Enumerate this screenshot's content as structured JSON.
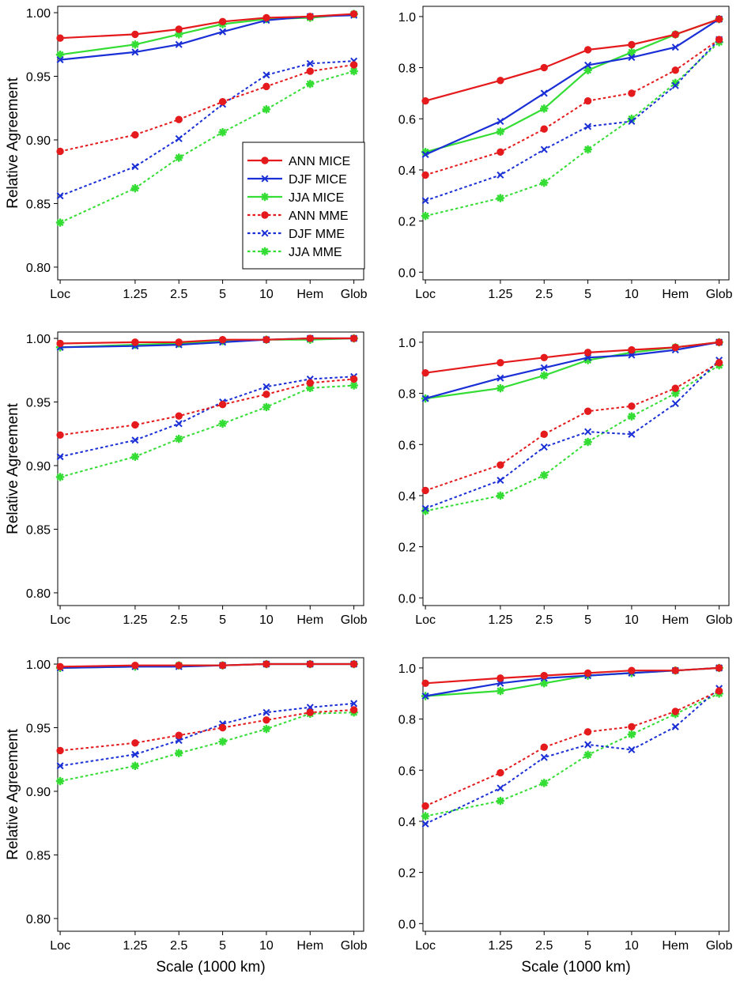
{
  "figure": {
    "ylabel": "Relative Agreement",
    "xlabel": "Scale (1000 km)",
    "x_tick_labels": [
      "Loc",
      "1.25",
      "2.5",
      "5",
      "10",
      "Hem",
      "Glob"
    ]
  },
  "legend": {
    "location": "center-right of top-left panel",
    "entries": [
      {
        "label": "ANN MICE",
        "series_key": "ann_mice"
      },
      {
        "label": "DJF MICE",
        "series_key": "djf_mice"
      },
      {
        "label": "JJA MICE",
        "series_key": "jja_mice"
      },
      {
        "label": "ANN MME",
        "series_key": "ann_mme"
      },
      {
        "label": "DJF MME",
        "series_key": "djf_mme"
      },
      {
        "label": "JJA MME",
        "series_key": "jja_mme"
      }
    ]
  },
  "series_styles": {
    "ann_mice": {
      "color": "#e41a1c",
      "dashed": false,
      "marker": "dot"
    },
    "djf_mice": {
      "color": "#1a2fd6",
      "dashed": false,
      "marker": "x"
    },
    "jja_mice": {
      "color": "#33dd33",
      "dashed": false,
      "marker": "star"
    },
    "ann_mme": {
      "color": "#e41a1c",
      "dashed": true,
      "marker": "dot"
    },
    "djf_mme": {
      "color": "#1a2fd6",
      "dashed": true,
      "marker": "x"
    },
    "jja_mme": {
      "color": "#33dd33",
      "dashed": true,
      "marker": "star"
    }
  },
  "chart_data": [
    {
      "type": "line",
      "panel": "row1-left",
      "categories": [
        "Loc",
        "1.25",
        "2.5",
        "5",
        "10",
        "Hem",
        "Glob"
      ],
      "ylabel": "Relative Agreement",
      "xlabel": "",
      "ylim": [
        0.79,
        1.005
      ],
      "yticks": [
        0.8,
        0.85,
        0.9,
        0.95,
        1.0
      ],
      "ytick_labels": [
        "0.80",
        "0.85",
        "0.90",
        "0.95",
        "1.00"
      ],
      "show_legend": true,
      "series": [
        {
          "key": "ann_mice",
          "name": "ANN MICE",
          "values": [
            0.98,
            0.983,
            0.987,
            0.993,
            0.996,
            0.997,
            0.999
          ]
        },
        {
          "key": "djf_mice",
          "name": "DJF MICE",
          "values": [
            0.963,
            0.969,
            0.975,
            0.985,
            0.994,
            0.997,
            0.998
          ]
        },
        {
          "key": "jja_mice",
          "name": "JJA MICE",
          "values": [
            0.967,
            0.975,
            0.983,
            0.991,
            0.995,
            0.996,
            0.999
          ]
        },
        {
          "key": "ann_mme",
          "name": "ANN MME",
          "values": [
            0.891,
            0.904,
            0.916,
            0.93,
            0.942,
            0.954,
            0.959
          ]
        },
        {
          "key": "djf_mme",
          "name": "DJF MME",
          "values": [
            0.856,
            0.879,
            0.901,
            0.928,
            0.951,
            0.96,
            0.962
          ]
        },
        {
          "key": "jja_mme",
          "name": "JJA MME",
          "values": [
            0.835,
            0.862,
            0.886,
            0.906,
            0.924,
            0.944,
            0.954
          ]
        }
      ]
    },
    {
      "type": "line",
      "panel": "row1-right",
      "categories": [
        "Loc",
        "1.25",
        "2.5",
        "5",
        "10",
        "Hem",
        "Glob"
      ],
      "ylabel": "",
      "xlabel": "",
      "ylim": [
        -0.03,
        1.04
      ],
      "yticks": [
        0.0,
        0.2,
        0.4,
        0.6,
        0.8,
        1.0
      ],
      "ytick_labels": [
        "0.0",
        "0.2",
        "0.4",
        "0.6",
        "0.8",
        "1.0"
      ],
      "show_legend": false,
      "series": [
        {
          "key": "ann_mice",
          "name": "ANN MICE",
          "values": [
            0.67,
            0.75,
            0.8,
            0.87,
            0.89,
            0.93,
            0.99
          ]
        },
        {
          "key": "djf_mice",
          "name": "DJF MICE",
          "values": [
            0.46,
            0.59,
            0.7,
            0.81,
            0.84,
            0.88,
            0.99
          ]
        },
        {
          "key": "jja_mice",
          "name": "JJA MICE",
          "values": [
            0.47,
            0.55,
            0.64,
            0.79,
            0.86,
            0.93,
            0.99
          ]
        },
        {
          "key": "ann_mme",
          "name": "ANN MME",
          "values": [
            0.38,
            0.47,
            0.56,
            0.67,
            0.7,
            0.79,
            0.91
          ]
        },
        {
          "key": "djf_mme",
          "name": "DJF MME",
          "values": [
            0.28,
            0.38,
            0.48,
            0.57,
            0.59,
            0.73,
            0.91
          ]
        },
        {
          "key": "jja_mme",
          "name": "JJA MME",
          "values": [
            0.22,
            0.29,
            0.35,
            0.48,
            0.6,
            0.74,
            0.9
          ]
        }
      ]
    },
    {
      "type": "line",
      "panel": "row2-left",
      "categories": [
        "Loc",
        "1.25",
        "2.5",
        "5",
        "10",
        "Hem",
        "Glob"
      ],
      "ylabel": "Relative Agreement",
      "xlabel": "",
      "ylim": [
        0.79,
        1.005
      ],
      "yticks": [
        0.8,
        0.85,
        0.9,
        0.95,
        1.0
      ],
      "ytick_labels": [
        "0.80",
        "0.85",
        "0.90",
        "0.95",
        "1.00"
      ],
      "show_legend": false,
      "series": [
        {
          "key": "ann_mice",
          "name": "ANN MICE",
          "values": [
            0.996,
            0.997,
            0.997,
            0.999,
            0.999,
            1.0,
            1.0
          ]
        },
        {
          "key": "djf_mice",
          "name": "DJF MICE",
          "values": [
            0.993,
            0.994,
            0.995,
            0.997,
            0.999,
            1.0,
            1.0
          ]
        },
        {
          "key": "jja_mice",
          "name": "JJA MICE",
          "values": [
            0.993,
            0.995,
            0.996,
            0.998,
            0.999,
            0.999,
            1.0
          ]
        },
        {
          "key": "ann_mme",
          "name": "ANN MME",
          "values": [
            0.924,
            0.932,
            0.939,
            0.948,
            0.956,
            0.965,
            0.968
          ]
        },
        {
          "key": "djf_mme",
          "name": "DJF MME",
          "values": [
            0.907,
            0.92,
            0.933,
            0.95,
            0.962,
            0.968,
            0.97
          ]
        },
        {
          "key": "jja_mme",
          "name": "JJA MME",
          "values": [
            0.891,
            0.907,
            0.921,
            0.933,
            0.946,
            0.961,
            0.963
          ]
        }
      ]
    },
    {
      "type": "line",
      "panel": "row2-right",
      "categories": [
        "Loc",
        "1.25",
        "2.5",
        "5",
        "10",
        "Hem",
        "Glob"
      ],
      "ylabel": "",
      "xlabel": "",
      "ylim": [
        -0.03,
        1.04
      ],
      "yticks": [
        0.0,
        0.2,
        0.4,
        0.6,
        0.8,
        1.0
      ],
      "ytick_labels": [
        "0.0",
        "0.2",
        "0.4",
        "0.6",
        "0.8",
        "1.0"
      ],
      "show_legend": false,
      "series": [
        {
          "key": "ann_mice",
          "name": "ANN MICE",
          "values": [
            0.88,
            0.92,
            0.94,
            0.96,
            0.97,
            0.98,
            1.0
          ]
        },
        {
          "key": "djf_mice",
          "name": "DJF MICE",
          "values": [
            0.78,
            0.86,
            0.9,
            0.94,
            0.95,
            0.97,
            1.0
          ]
        },
        {
          "key": "jja_mice",
          "name": "JJA MICE",
          "values": [
            0.78,
            0.82,
            0.87,
            0.93,
            0.96,
            0.98,
            1.0
          ]
        },
        {
          "key": "ann_mme",
          "name": "ANN MME",
          "values": [
            0.42,
            0.52,
            0.64,
            0.73,
            0.75,
            0.82,
            0.92
          ]
        },
        {
          "key": "djf_mme",
          "name": "DJF MME",
          "values": [
            0.35,
            0.46,
            0.59,
            0.65,
            0.64,
            0.76,
            0.93
          ]
        },
        {
          "key": "jja_mme",
          "name": "JJA MME",
          "values": [
            0.34,
            0.4,
            0.48,
            0.61,
            0.71,
            0.8,
            0.91
          ]
        }
      ]
    },
    {
      "type": "line",
      "panel": "row3-left",
      "categories": [
        "Loc",
        "1.25",
        "2.5",
        "5",
        "10",
        "Hem",
        "Glob"
      ],
      "ylabel": "Relative Agreement",
      "xlabel": "Scale (1000 km)",
      "ylim": [
        0.79,
        1.005
      ],
      "yticks": [
        0.8,
        0.85,
        0.9,
        0.95,
        1.0
      ],
      "ytick_labels": [
        "0.80",
        "0.85",
        "0.90",
        "0.95",
        "1.00"
      ],
      "show_legend": false,
      "series": [
        {
          "key": "ann_mice",
          "name": "ANN MICE",
          "values": [
            0.998,
            0.999,
            0.999,
            0.999,
            1.0,
            1.0,
            1.0
          ]
        },
        {
          "key": "djf_mice",
          "name": "DJF MICE",
          "values": [
            0.997,
            0.998,
            0.998,
            0.999,
            1.0,
            1.0,
            1.0
          ]
        },
        {
          "key": "jja_mice",
          "name": "JJA MICE",
          "values": [
            0.997,
            0.998,
            0.999,
            0.999,
            1.0,
            1.0,
            1.0
          ]
        },
        {
          "key": "ann_mme",
          "name": "ANN MME",
          "values": [
            0.932,
            0.938,
            0.944,
            0.95,
            0.956,
            0.962,
            0.964
          ]
        },
        {
          "key": "djf_mme",
          "name": "DJF MME",
          "values": [
            0.92,
            0.929,
            0.94,
            0.953,
            0.962,
            0.966,
            0.969
          ]
        },
        {
          "key": "jja_mme",
          "name": "JJA MME",
          "values": [
            0.908,
            0.92,
            0.93,
            0.939,
            0.949,
            0.961,
            0.962
          ]
        }
      ]
    },
    {
      "type": "line",
      "panel": "row3-right",
      "categories": [
        "Loc",
        "1.25",
        "2.5",
        "5",
        "10",
        "Hem",
        "Glob"
      ],
      "ylabel": "",
      "xlabel": "Scale (1000 km)",
      "ylim": [
        -0.03,
        1.04
      ],
      "yticks": [
        0.0,
        0.2,
        0.4,
        0.6,
        0.8,
        1.0
      ],
      "ytick_labels": [
        "0.0",
        "0.2",
        "0.4",
        "0.6",
        "0.8",
        "1.0"
      ],
      "show_legend": false,
      "series": [
        {
          "key": "ann_mice",
          "name": "ANN MICE",
          "values": [
            0.94,
            0.96,
            0.97,
            0.98,
            0.99,
            0.99,
            1.0
          ]
        },
        {
          "key": "djf_mice",
          "name": "DJF MICE",
          "values": [
            0.89,
            0.94,
            0.96,
            0.97,
            0.98,
            0.99,
            1.0
          ]
        },
        {
          "key": "jja_mice",
          "name": "JJA MICE",
          "values": [
            0.89,
            0.91,
            0.94,
            0.97,
            0.98,
            0.99,
            1.0
          ]
        },
        {
          "key": "ann_mme",
          "name": "ANN MME",
          "values": [
            0.46,
            0.59,
            0.69,
            0.75,
            0.77,
            0.83,
            0.91
          ]
        },
        {
          "key": "djf_mme",
          "name": "DJF MME",
          "values": [
            0.39,
            0.53,
            0.65,
            0.7,
            0.68,
            0.77,
            0.92
          ]
        },
        {
          "key": "jja_mme",
          "name": "JJA MME",
          "values": [
            0.42,
            0.48,
            0.55,
            0.66,
            0.74,
            0.82,
            0.9
          ]
        }
      ]
    }
  ]
}
